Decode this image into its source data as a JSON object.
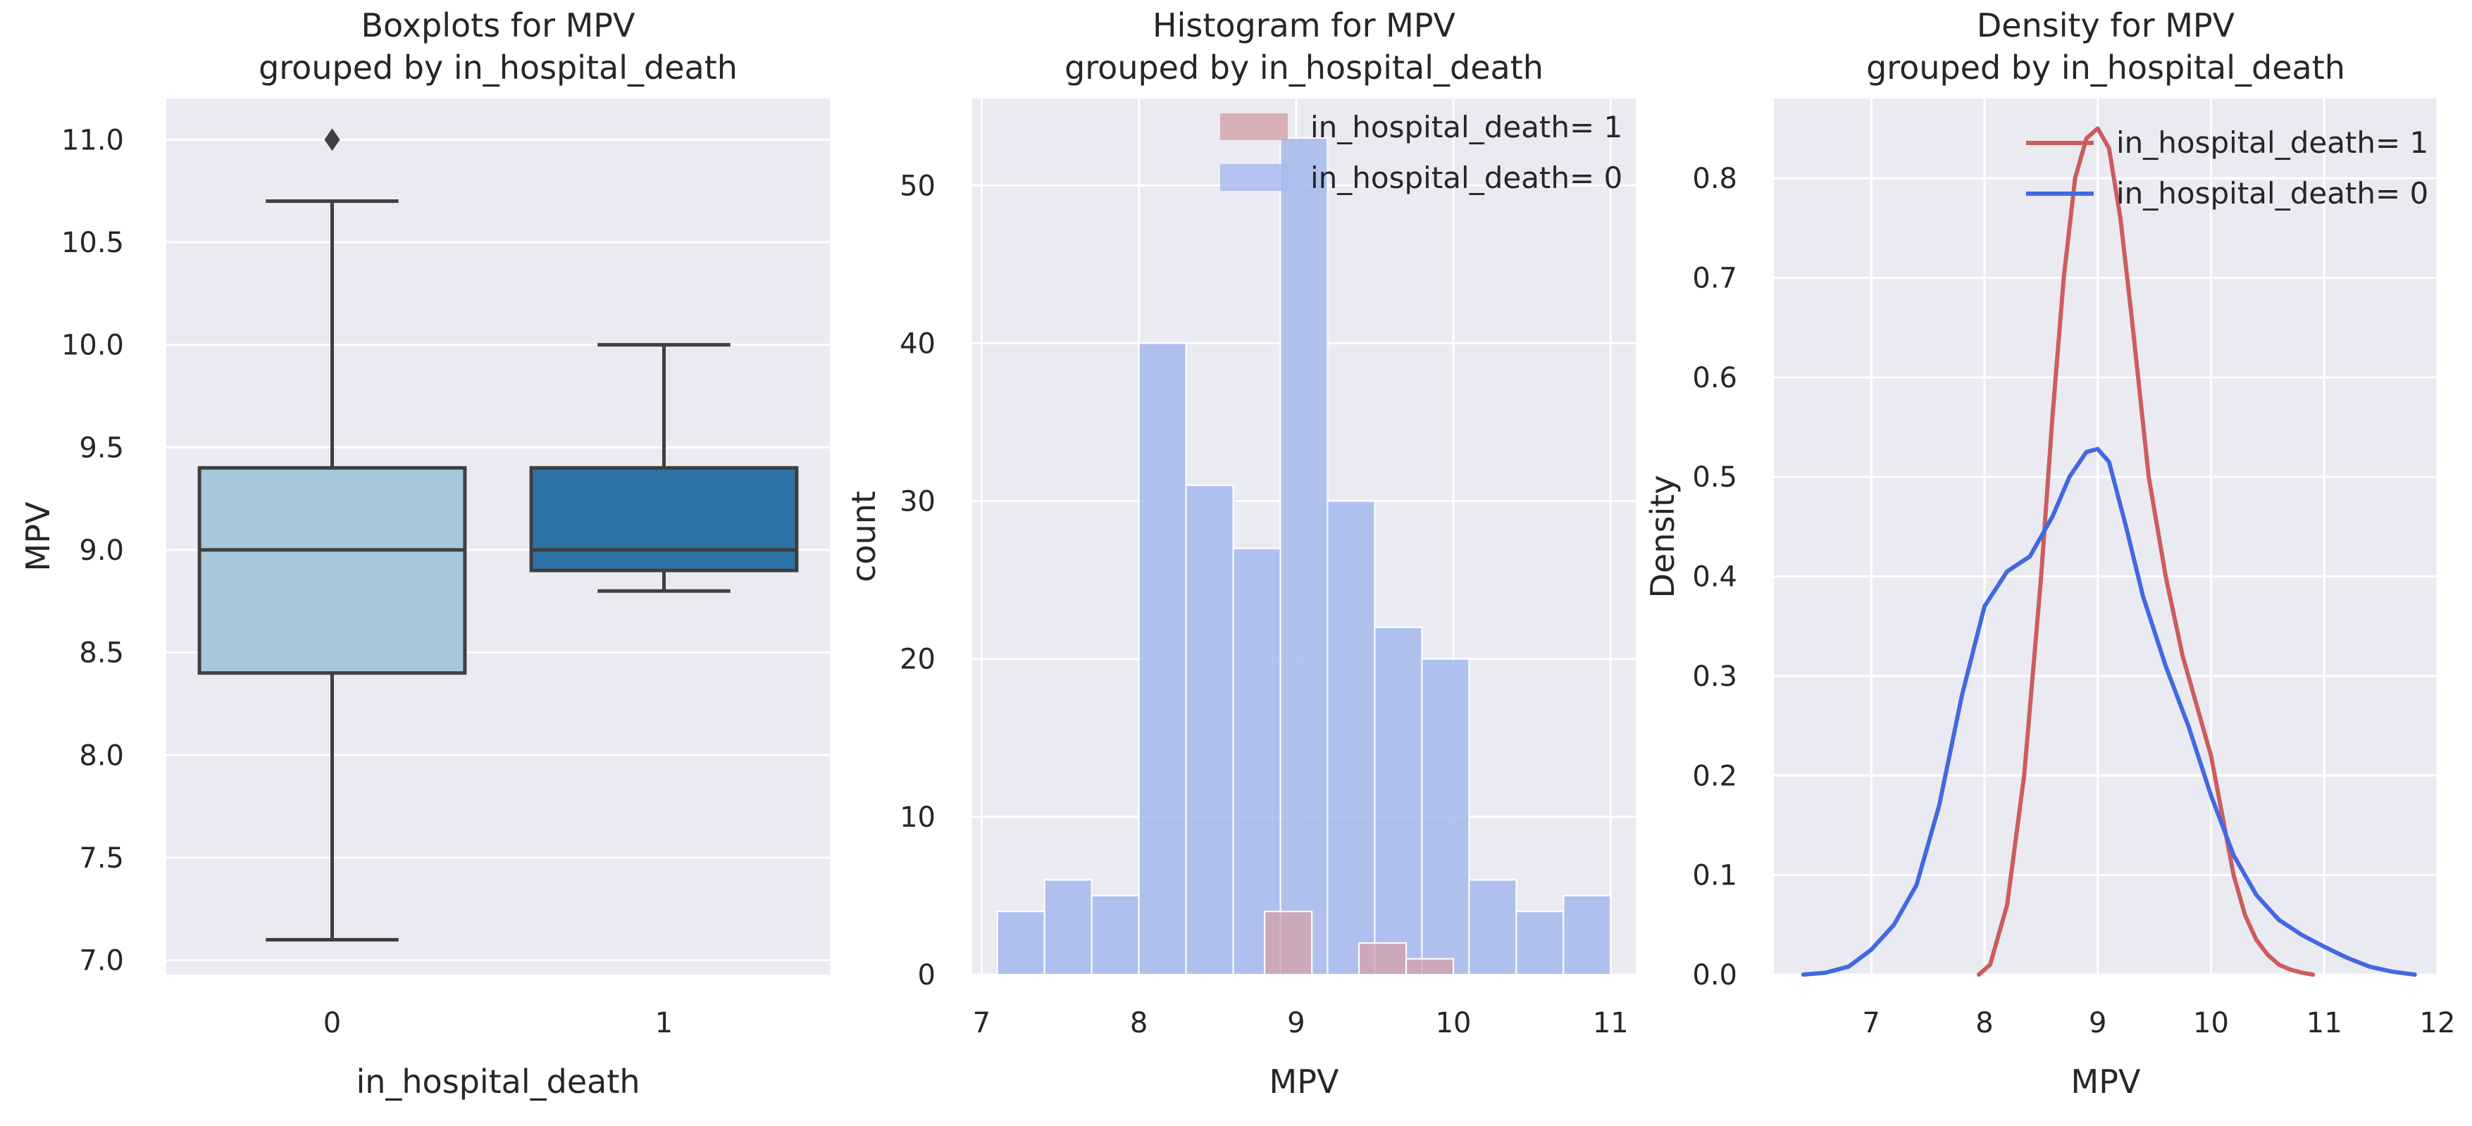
{
  "colors": {
    "background": "#eaeaf2",
    "grid": "#ffffff",
    "text": "#262626",
    "box_group0": "#a6c8da",
    "box_group1": "#2d73a6",
    "box_line": "#3f3f3f",
    "hist_group0": "#a6b8ed",
    "hist_group1": "#d4a0a8",
    "density_group0": "#4169e1",
    "density_group1": "#cd5c5c"
  },
  "chart_data": [
    {
      "type": "box",
      "title": "Boxplots for MPV\ngrouped by in_hospital_death",
      "xlabel": "in_hospital_death",
      "ylabel": "MPV",
      "ylim": [
        6.93,
        11.2
      ],
      "yticks": [
        "7.0",
        "7.5",
        "8.0",
        "8.5",
        "9.0",
        "9.5",
        "10.0",
        "10.5",
        "11.0"
      ],
      "categories": [
        "0",
        "1"
      ],
      "boxes": [
        {
          "category": "0",
          "whisker_low": 7.1,
          "q1": 8.4,
          "median": 9.0,
          "q3": 9.4,
          "whisker_high": 10.7,
          "outliers": [
            11.0
          ]
        },
        {
          "category": "1",
          "whisker_low": 8.8,
          "q1": 8.9,
          "median": 9.0,
          "q3": 9.4,
          "whisker_high": 10.0,
          "outliers": []
        }
      ],
      "grid": true
    },
    {
      "type": "histogram",
      "title": "Histogram for MPV\ngrouped by in_hospital_death",
      "xlabel": "MPV",
      "ylabel": "count",
      "xlim": [
        6.94,
        11.16
      ],
      "ylim": [
        0,
        55.5
      ],
      "xticks": [
        "7",
        "8",
        "9",
        "10",
        "11"
      ],
      "yticks": [
        "0",
        "10",
        "20",
        "30",
        "40",
        "50"
      ],
      "legend": {
        "position": "top-right",
        "entries": [
          "in_hospital_death= 1",
          "in_hospital_death= 0"
        ]
      },
      "series": [
        {
          "name": "in_hospital_death= 1",
          "bins": [
            [
              8.8,
              9.1,
              4
            ],
            [
              9.4,
              9.7,
              2
            ],
            [
              9.7,
              10.0,
              1
            ]
          ]
        },
        {
          "name": "in_hospital_death= 0",
          "bins": [
            [
              7.1,
              7.4,
              4
            ],
            [
              7.4,
              7.7,
              6
            ],
            [
              7.7,
              8.0,
              5
            ],
            [
              8.0,
              8.3,
              40
            ],
            [
              8.3,
              8.6,
              31
            ],
            [
              8.6,
              8.9,
              27
            ],
            [
              8.9,
              9.2,
              53
            ],
            [
              9.2,
              9.5,
              30
            ],
            [
              9.5,
              9.8,
              22
            ],
            [
              9.8,
              10.1,
              20
            ],
            [
              10.1,
              10.4,
              6
            ],
            [
              10.4,
              10.7,
              4
            ],
            [
              10.7,
              11.0,
              5
            ]
          ]
        }
      ],
      "grid": true
    },
    {
      "type": "line",
      "title": "Density for MPV\ngrouped by in_hospital_death",
      "xlabel": "MPV",
      "ylabel": "Density",
      "xlim": [
        6.14,
        12.0
      ],
      "ylim": [
        0,
        0.88
      ],
      "xticks": [
        "7",
        "8",
        "9",
        "10",
        "11",
        "12"
      ],
      "yticks": [
        "0.0",
        "0.1",
        "0.2",
        "0.3",
        "0.4",
        "0.5",
        "0.6",
        "0.7",
        "0.8"
      ],
      "legend": {
        "position": "top-right",
        "entries": [
          "in_hospital_death= 1",
          "in_hospital_death= 0"
        ]
      },
      "series": [
        {
          "name": "in_hospital_death= 1",
          "x": [
            7.95,
            8.05,
            8.2,
            8.35,
            8.5,
            8.6,
            8.7,
            8.8,
            8.9,
            9.0,
            9.1,
            9.2,
            9.3,
            9.45,
            9.6,
            9.75,
            9.9,
            10.0,
            10.1,
            10.2,
            10.3,
            10.4,
            10.5,
            10.6,
            10.7,
            10.8,
            10.9
          ],
          "y": [
            0.0,
            0.01,
            0.07,
            0.2,
            0.4,
            0.56,
            0.7,
            0.8,
            0.84,
            0.85,
            0.83,
            0.76,
            0.66,
            0.5,
            0.4,
            0.32,
            0.26,
            0.22,
            0.16,
            0.1,
            0.06,
            0.035,
            0.02,
            0.01,
            0.005,
            0.002,
            0.0
          ]
        },
        {
          "name": "in_hospital_death= 0",
          "x": [
            6.4,
            6.6,
            6.8,
            7.0,
            7.2,
            7.4,
            7.6,
            7.8,
            8.0,
            8.2,
            8.4,
            8.6,
            8.75,
            8.9,
            9.0,
            9.1,
            9.25,
            9.4,
            9.6,
            9.8,
            10.0,
            10.2,
            10.4,
            10.6,
            10.8,
            11.0,
            11.2,
            11.4,
            11.6,
            11.8
          ],
          "y": [
            0.0,
            0.002,
            0.008,
            0.025,
            0.05,
            0.09,
            0.17,
            0.28,
            0.37,
            0.405,
            0.42,
            0.46,
            0.5,
            0.525,
            0.528,
            0.515,
            0.45,
            0.38,
            0.31,
            0.25,
            0.18,
            0.12,
            0.08,
            0.055,
            0.04,
            0.028,
            0.017,
            0.008,
            0.003,
            0.0
          ]
        }
      ],
      "grid": true
    }
  ]
}
